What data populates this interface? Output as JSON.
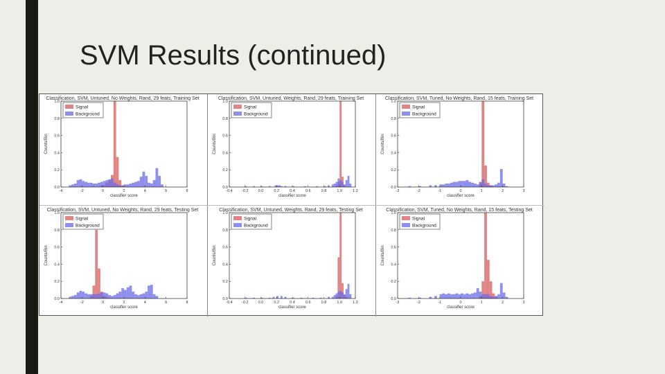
{
  "slide": {
    "title": "SVM Results (continued)"
  },
  "colors": {
    "signal": "#dc6e6e",
    "background": "#6a6ae8",
    "overlap": "#a04c98"
  },
  "chart_data": [
    {
      "type": "bar",
      "title": "Classification, SVM, Untuned, No Weights, Rand, 29 feats, Training Set",
      "xlabel": "classifier score",
      "ylabel": "Counts/Bin",
      "xlim": [
        -4,
        8
      ],
      "ylim": [
        0,
        1.0
      ],
      "xticks": [
        "-4",
        "-2",
        "0",
        "2",
        "4",
        "6",
        "8"
      ],
      "yticks": [
        "0.0",
        "0.2",
        "0.4",
        "0.6",
        "0.8",
        "1.0"
      ],
      "bin_width": 0.25,
      "legend": [
        "Signal",
        "Background"
      ],
      "series": [
        {
          "name": "Signal",
          "bins": [
            [
              -0.25,
              0.02
            ],
            [
              0,
              0.02
            ],
            [
              0.25,
              0.05
            ],
            [
              0.5,
              0.08
            ],
            [
              0.75,
              0.14
            ],
            [
              1.0,
              1.0
            ],
            [
              1.25,
              0.35
            ],
            [
              1.5,
              0.08
            ],
            [
              1.75,
              0.02
            ]
          ]
        },
        {
          "name": "Background",
          "bins": [
            [
              -3.25,
              0.02
            ],
            [
              -3.0,
              0.03
            ],
            [
              -2.75,
              0.04
            ],
            [
              -2.5,
              0.08
            ],
            [
              -2.25,
              0.09
            ],
            [
              -2.0,
              0.07
            ],
            [
              -1.75,
              0.06
            ],
            [
              -1.5,
              0.05
            ],
            [
              -1.25,
              0.05
            ],
            [
              -1.0,
              0.04
            ],
            [
              -0.75,
              0.04
            ],
            [
              -0.5,
              0.05
            ],
            [
              -0.25,
              0.06
            ],
            [
              0,
              0.07
            ],
            [
              0.25,
              0.08
            ],
            [
              0.5,
              0.09
            ],
            [
              0.75,
              0.1
            ],
            [
              1.0,
              0.05
            ],
            [
              1.25,
              0.03
            ],
            [
              1.5,
              0.02
            ],
            [
              1.75,
              0.02
            ],
            [
              2.0,
              0.03
            ],
            [
              2.25,
              0.03
            ],
            [
              2.5,
              0.04
            ],
            [
              2.75,
              0.05
            ],
            [
              3.0,
              0.06
            ],
            [
              3.25,
              0.07
            ],
            [
              3.5,
              0.12
            ],
            [
              3.75,
              0.18
            ],
            [
              4.0,
              0.13
            ],
            [
              4.25,
              0.05
            ],
            [
              4.5,
              0.04
            ],
            [
              4.75,
              0.08
            ],
            [
              5.0,
              0.22
            ],
            [
              5.25,
              0.13
            ],
            [
              5.5,
              0.03
            ]
          ]
        }
      ]
    },
    {
      "type": "bar",
      "title": "Classification, SVM, Untuned, Weights, Rand, 29 feats, Training Set",
      "xlabel": "classifier score",
      "ylabel": "Counts/Bin",
      "xlim": [
        -0.4,
        1.2
      ],
      "ylim": [
        0,
        1.0
      ],
      "xticks": [
        "-0.4",
        "-0.2",
        "0.0",
        "0.2",
        "0.4",
        "0.6",
        "0.8",
        "1.0",
        "1.2"
      ],
      "yticks": [
        "0.0",
        "0.2",
        "0.4",
        "0.6",
        "0.8",
        "1.0"
      ],
      "bin_width": 0.025,
      "legend": [
        "Signal",
        "Background"
      ],
      "series": [
        {
          "name": "Signal",
          "bins": [
            [
              0.95,
              0.02
            ],
            [
              0.975,
              0.06
            ],
            [
              1.0,
              1.0
            ],
            [
              1.025,
              0.12
            ],
            [
              1.05,
              0.02
            ]
          ]
        },
        {
          "name": "Background",
          "bins": [
            [
              -0.2,
              0.01
            ],
            [
              -0.1,
              0.01
            ],
            [
              0.0,
              0.01
            ],
            [
              0.1,
              0.01
            ],
            [
              0.175,
              0.02
            ],
            [
              0.2,
              0.02
            ],
            [
              0.225,
              0.02
            ],
            [
              0.25,
              0.01
            ],
            [
              0.3,
              0.01
            ],
            [
              0.4,
              0.01
            ],
            [
              0.55,
              0.01
            ],
            [
              0.7,
              0.01
            ],
            [
              0.8,
              0.01
            ],
            [
              0.85,
              0.02
            ],
            [
              0.9,
              0.03
            ],
            [
              0.925,
              0.04
            ],
            [
              0.95,
              0.06
            ],
            [
              0.975,
              0.1
            ],
            [
              1.0,
              0.08
            ],
            [
              1.025,
              0.06
            ],
            [
              1.05,
              0.03
            ],
            [
              1.075,
              0.08
            ],
            [
              1.1,
              0.13
            ],
            [
              1.125,
              0.04
            ]
          ]
        }
      ]
    },
    {
      "type": "bar",
      "title": "Classification, SVM, Tuned, No Weights, Rand, 15 feats, Training Set",
      "xlabel": "classifier score",
      "ylabel": "Counts/Bin",
      "xlim": [
        -3,
        3
      ],
      "ylim": [
        0,
        1.0
      ],
      "xticks": [
        "-3",
        "-2",
        "-1",
        "0",
        "1",
        "2",
        "3"
      ],
      "yticks": [
        "0.0",
        "0.2",
        "0.4",
        "0.6",
        "0.8",
        "1.0"
      ],
      "bin_width": 0.125,
      "legend": [
        "Signal",
        "Background"
      ],
      "series": [
        {
          "name": "Signal",
          "bins": [
            [
              0.875,
              0.06
            ],
            [
              1.0,
              1.0
            ],
            [
              1.125,
              0.25
            ],
            [
              1.25,
              0.05
            ],
            [
              1.375,
              0.02
            ]
          ]
        },
        {
          "name": "Background",
          "bins": [
            [
              -2.5,
              0.01
            ],
            [
              -2.0,
              0.01
            ],
            [
              -1.5,
              0.02
            ],
            [
              -1.25,
              0.02
            ],
            [
              -1.0,
              0.03
            ],
            [
              -0.875,
              0.03
            ],
            [
              -0.75,
              0.04
            ],
            [
              -0.625,
              0.04
            ],
            [
              -0.5,
              0.05
            ],
            [
              -0.375,
              0.06
            ],
            [
              -0.25,
              0.06
            ],
            [
              -0.125,
              0.07
            ],
            [
              0.0,
              0.07
            ],
            [
              0.125,
              0.07
            ],
            [
              0.25,
              0.08
            ],
            [
              0.375,
              0.06
            ],
            [
              0.5,
              0.05
            ],
            [
              0.625,
              0.04
            ],
            [
              0.75,
              0.03
            ],
            [
              0.875,
              0.05
            ],
            [
              1.0,
              0.09
            ],
            [
              1.125,
              0.04
            ],
            [
              1.25,
              0.02
            ],
            [
              1.375,
              0.02
            ],
            [
              1.5,
              0.02
            ],
            [
              1.625,
              0.03
            ],
            [
              1.75,
              0.05
            ],
            [
              1.875,
              0.21
            ],
            [
              2.0,
              0.04
            ],
            [
              2.125,
              0.01
            ]
          ]
        }
      ]
    },
    {
      "type": "bar",
      "title": "Classification, SVM, Untuned, No Weights, Rand, 29 feats, Testing Set",
      "xlabel": "classifier score",
      "ylabel": "Counts/Bin",
      "xlim": [
        -4,
        8
      ],
      "ylim": [
        0,
        1.0
      ],
      "xticks": [
        "-4",
        "-2",
        "0",
        "2",
        "4",
        "6",
        "8"
      ],
      "yticks": [
        "0.0",
        "0.2",
        "0.4",
        "0.6",
        "0.8",
        "1.0"
      ],
      "bin_width": 0.25,
      "legend": [
        "Signal",
        "Background"
      ],
      "series": [
        {
          "name": "Signal",
          "bins": [
            [
              -1.25,
              0.03
            ],
            [
              -1.0,
              0.15
            ],
            [
              -0.75,
              0.8
            ],
            [
              -0.5,
              0.35
            ],
            [
              -0.25,
              0.08
            ],
            [
              0,
              0.03
            ],
            [
              0.25,
              0.02
            ]
          ]
        },
        {
          "name": "Background",
          "bins": [
            [
              -3.25,
              0.02
            ],
            [
              -3.0,
              0.03
            ],
            [
              -2.75,
              0.04
            ],
            [
              -2.5,
              0.07
            ],
            [
              -2.25,
              0.09
            ],
            [
              -2.0,
              0.08
            ],
            [
              -1.75,
              0.06
            ],
            [
              -1.5,
              0.05
            ],
            [
              -1.25,
              0.05
            ],
            [
              -1.0,
              0.05
            ],
            [
              -0.75,
              0.05
            ],
            [
              -0.5,
              0.06
            ],
            [
              -0.25,
              0.07
            ],
            [
              0,
              0.07
            ],
            [
              0.25,
              0.06
            ],
            [
              0.5,
              0.04
            ],
            [
              0.75,
              0.03
            ],
            [
              1.0,
              0.04
            ],
            [
              1.25,
              0.06
            ],
            [
              1.5,
              0.08
            ],
            [
              1.75,
              0.12
            ],
            [
              2.0,
              0.1
            ],
            [
              2.25,
              0.13
            ],
            [
              2.5,
              0.15
            ],
            [
              2.75,
              0.08
            ],
            [
              3.0,
              0.05
            ],
            [
              3.25,
              0.04
            ],
            [
              3.5,
              0.05
            ],
            [
              3.75,
              0.06
            ],
            [
              4.0,
              0.08
            ],
            [
              4.25,
              0.15
            ],
            [
              4.5,
              0.16
            ],
            [
              4.75,
              0.05
            ],
            [
              5.0,
              0.03
            ]
          ]
        }
      ]
    },
    {
      "type": "bar",
      "title": "Classification, SVM, Untuned, Weights, Rand, 29 feats, Testing Set",
      "xlabel": "classifier score",
      "ylabel": "Counts/Bin",
      "xlim": [
        -0.4,
        1.2
      ],
      "ylim": [
        0,
        1.0
      ],
      "xticks": [
        "-0.4",
        "-0.2",
        "0.0",
        "0.2",
        "0.4",
        "0.6",
        "0.8",
        "1.0",
        "1.2"
      ],
      "yticks": [
        "0.0",
        "0.2",
        "0.4",
        "0.6",
        "0.8",
        "1.0"
      ],
      "bin_width": 0.025,
      "legend": [
        "Signal",
        "Background"
      ],
      "series": [
        {
          "name": "Signal",
          "bins": [
            [
              0.95,
              0.03
            ],
            [
              0.975,
              0.48
            ],
            [
              1.0,
              1.0
            ],
            [
              1.025,
              0.18
            ],
            [
              1.05,
              0.04
            ],
            [
              1.075,
              0.02
            ]
          ]
        },
        {
          "name": "Background",
          "bins": [
            [
              -0.2,
              0.01
            ],
            [
              -0.1,
              0.01
            ],
            [
              0.0,
              0.01
            ],
            [
              0.1,
              0.01
            ],
            [
              0.15,
              0.02
            ],
            [
              0.2,
              0.03
            ],
            [
              0.25,
              0.03
            ],
            [
              0.3,
              0.02
            ],
            [
              0.4,
              0.01
            ],
            [
              0.5,
              0.01
            ],
            [
              0.65,
              0.01
            ],
            [
              0.75,
              0.01
            ],
            [
              0.85,
              0.02
            ],
            [
              0.9,
              0.02
            ],
            [
              0.925,
              0.04
            ],
            [
              0.95,
              0.06
            ],
            [
              0.975,
              0.08
            ],
            [
              1.0,
              0.09
            ],
            [
              1.025,
              0.07
            ],
            [
              1.05,
              0.05
            ],
            [
              1.075,
              0.11
            ],
            [
              1.1,
              0.17
            ],
            [
              1.125,
              0.05
            ]
          ]
        }
      ]
    },
    {
      "type": "bar",
      "title": "Classification, SVM, Tuned, No Weights, Rand, 15 feats, Testing Set",
      "xlabel": "classifier score",
      "ylabel": "Counts/Bin",
      "xlim": [
        -3,
        3
      ],
      "ylim": [
        0,
        1.0
      ],
      "xticks": [
        "-3",
        "-2",
        "-1",
        "0",
        "1",
        "2",
        "3"
      ],
      "yticks": [
        "0.0",
        "0.2",
        "0.4",
        "0.6",
        "0.8",
        "1.0"
      ],
      "bin_width": 0.125,
      "legend": [
        "Signal",
        "Background"
      ],
      "series": [
        {
          "name": "Signal",
          "bins": [
            [
              0.875,
              0.03
            ],
            [
              1.0,
              0.2
            ],
            [
              1.125,
              1.0
            ],
            [
              1.25,
              0.45
            ],
            [
              1.375,
              0.2
            ],
            [
              1.5,
              0.06
            ],
            [
              1.625,
              0.02
            ]
          ]
        },
        {
          "name": "Background",
          "bins": [
            [
              -2.5,
              0.01
            ],
            [
              -2.0,
              0.01
            ],
            [
              -1.5,
              0.02
            ],
            [
              -1.25,
              0.03
            ],
            [
              -1.0,
              0.05
            ],
            [
              -0.875,
              0.06
            ],
            [
              -0.75,
              0.05
            ],
            [
              -0.625,
              0.06
            ],
            [
              -0.5,
              0.05
            ],
            [
              -0.375,
              0.05
            ],
            [
              -0.25,
              0.06
            ],
            [
              -0.125,
              0.05
            ],
            [
              0.0,
              0.06
            ],
            [
              0.125,
              0.05
            ],
            [
              0.25,
              0.06
            ],
            [
              0.375,
              0.05
            ],
            [
              0.5,
              0.06
            ],
            [
              0.625,
              0.07
            ],
            [
              0.75,
              0.12
            ],
            [
              0.875,
              0.08
            ],
            [
              1.0,
              0.05
            ],
            [
              1.125,
              0.05
            ],
            [
              1.25,
              0.05
            ],
            [
              1.375,
              0.03
            ],
            [
              1.5,
              0.02
            ],
            [
              1.625,
              0.03
            ],
            [
              1.75,
              0.05
            ],
            [
              1.875,
              0.18
            ],
            [
              2.0,
              0.07
            ],
            [
              2.125,
              0.02
            ]
          ]
        }
      ]
    }
  ]
}
